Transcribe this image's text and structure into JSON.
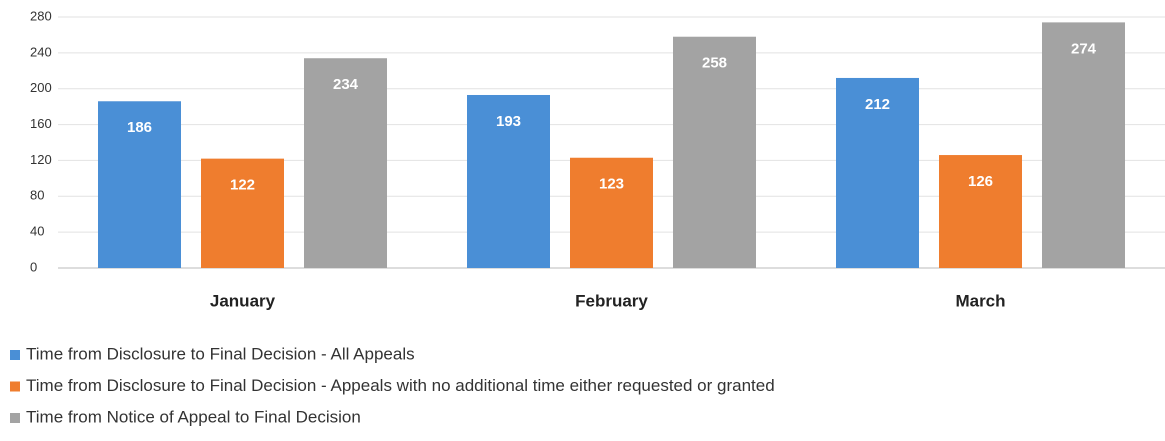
{
  "chart_data": {
    "type": "bar",
    "categories": [
      "January",
      "February",
      "March"
    ],
    "series": [
      {
        "name": "Time from Disclosure to Final Decision - All Appeals",
        "color": "#4a8fd6",
        "values": [
          186,
          193,
          212
        ]
      },
      {
        "name": "Time from Disclosure to Final Decision - Appeals with no additional time either requested or granted",
        "color": "#ef7d2e",
        "values": [
          122,
          123,
          126
        ]
      },
      {
        "name": "Time from Notice of Appeal to Final Decision",
        "color": "#a3a3a3",
        "values": [
          234,
          258,
          274
        ]
      }
    ],
    "ylim": [
      0,
      280
    ],
    "yticks": [
      0,
      40,
      80,
      120,
      160,
      200,
      240,
      280
    ],
    "grid": true
  }
}
